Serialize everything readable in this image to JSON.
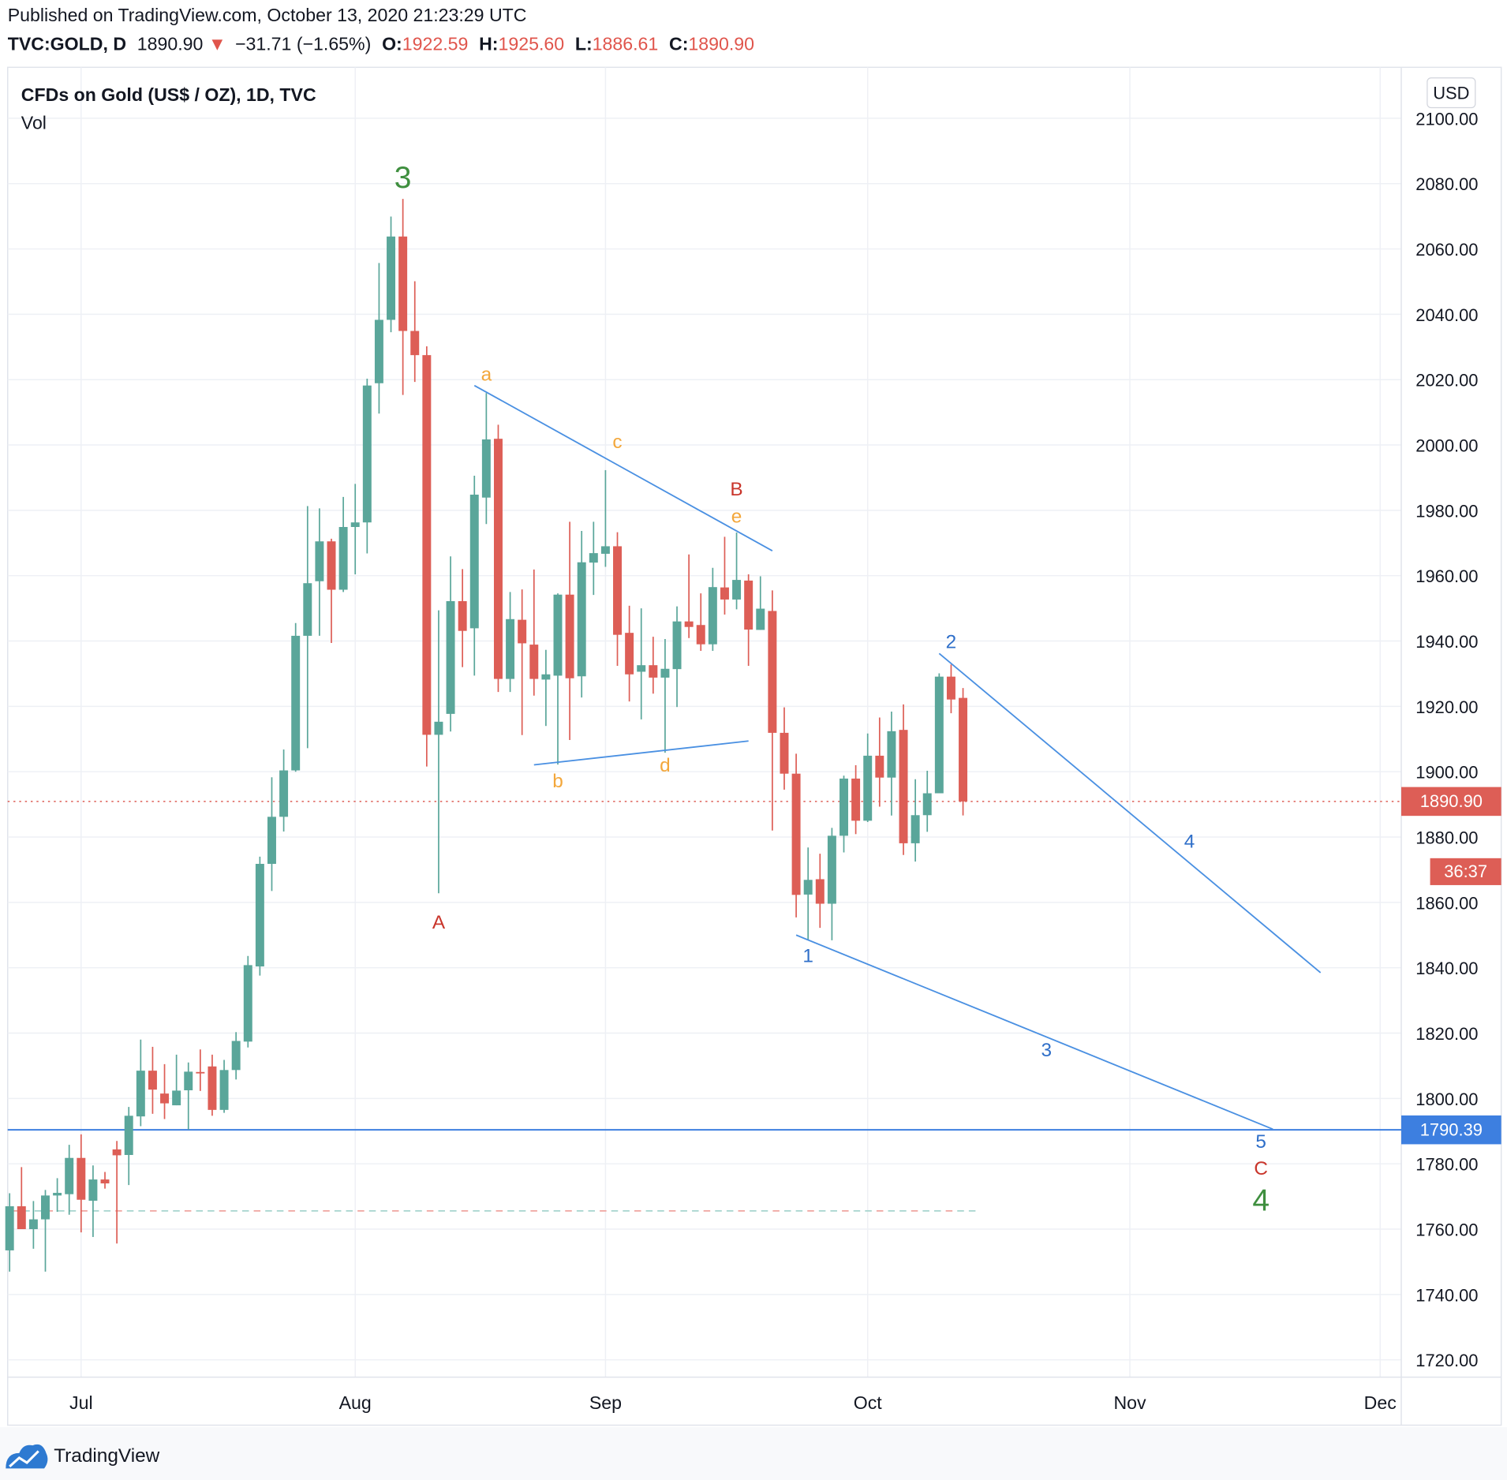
{
  "header": {
    "published": "Published on TradingView.com, October 13, 2020 21:23:29 UTC",
    "symbol": "TVC:GOLD, D",
    "last": "1890.90",
    "change_arrow": "▼",
    "change": "−31.71 (−1.65%)",
    "o_label": "O:",
    "o": "1922.59",
    "h_label": "H:",
    "h": "1925.60",
    "l_label": "L:",
    "l": "1886.61",
    "c_label": "C:",
    "c": "1890.90"
  },
  "pane": {
    "title": "CFDs on Gold (US$ / OZ), 1D, TVC",
    "indicator": "Vol",
    "currency": "USD"
  },
  "badges": {
    "last_price": "1890.90",
    "countdown": "36:37",
    "hline_price": "1790.39"
  },
  "footer": {
    "brand": "TradingView"
  },
  "colors": {
    "up": "#5aa69a",
    "down": "#dd5e56",
    "line_blue": "#4a90e2",
    "hline_blue": "#3d7fe0",
    "wave_blue": "#2f6fc9",
    "wave_orange": "#f3a73b",
    "wave_red": "#c9352b",
    "wave_green": "#3f8f3f"
  },
  "chart_data": {
    "type": "candlestick",
    "title": "CFDs on Gold (US$ / OZ), 1D, TVC",
    "ylim": [
      1710,
      2110
    ],
    "y_ticks": [
      "2100.00",
      "2080.00",
      "2060.00",
      "2040.00",
      "2020.00",
      "2000.00",
      "1980.00",
      "1960.00",
      "1940.00",
      "1920.00",
      "1900.00",
      "1880.00",
      "1860.00",
      "1840.00",
      "1820.00",
      "1800.00",
      "1780.00",
      "1760.00",
      "1740.00",
      "1720.00"
    ],
    "x_ticks": [
      {
        "label": "Jul",
        "date": "2020-07-01"
      },
      {
        "label": "Aug",
        "date": "2020-08-03"
      },
      {
        "label": "Sep",
        "date": "2020-09-01"
      },
      {
        "label": "Oct",
        "date": "2020-10-01"
      },
      {
        "label": "Nov",
        "date": "2020-11-02"
      },
      {
        "label": "Dec",
        "date": "2020-12-01"
      }
    ],
    "grid": true,
    "columns": [
      "date",
      "open",
      "high",
      "low",
      "close"
    ],
    "candles": [
      [
        "2020-06-23",
        1753.5,
        1771,
        1747,
        1767
      ],
      [
        "2020-06-24",
        1767,
        1779,
        1760,
        1760
      ],
      [
        "2020-06-25",
        1760,
        1768.6,
        1754,
        1763
      ],
      [
        "2020-06-26",
        1763,
        1772,
        1747,
        1770.3
      ],
      [
        "2020-06-29",
        1770.3,
        1775.6,
        1765.3,
        1771.1
      ],
      [
        "2020-06-30",
        1770.7,
        1785.8,
        1764.4,
        1781.8
      ],
      [
        "2020-07-01",
        1781.8,
        1789,
        1759,
        1769
      ],
      [
        "2020-07-02",
        1768.7,
        1779.5,
        1757.6,
        1775.2
      ],
      [
        "2020-07-03",
        1775.2,
        1777.5,
        1772.4,
        1774
      ],
      [
        "2020-07-06",
        1784.4,
        1787,
        1755.6,
        1782.6
      ],
      [
        "2020-07-07",
        1782.7,
        1797.4,
        1773.5,
        1794.7
      ],
      [
        "2020-07-08",
        1794.5,
        1818,
        1791.5,
        1808.5
      ],
      [
        "2020-07-09",
        1808.5,
        1815.8,
        1795.3,
        1802.7
      ],
      [
        "2020-07-10",
        1801.5,
        1810.5,
        1793.7,
        1798.5
      ],
      [
        "2020-07-13",
        1797.9,
        1813.4,
        1797.9,
        1802.4
      ],
      [
        "2020-07-14",
        1802.5,
        1811,
        1790.5,
        1808.2
      ],
      [
        "2020-07-15",
        1808.1,
        1815,
        1802.3,
        1807.7
      ],
      [
        "2020-07-16",
        1809.8,
        1813.4,
        1794.7,
        1796.5
      ],
      [
        "2020-07-17",
        1796.5,
        1811.8,
        1795.6,
        1808.7
      ],
      [
        "2020-07-20",
        1808.7,
        1820.3,
        1805.8,
        1817.6
      ],
      [
        "2020-07-21",
        1817.4,
        1843.6,
        1815.6,
        1840.8
      ],
      [
        "2020-07-22",
        1840.4,
        1874,
        1837.6,
        1871.8
      ],
      [
        "2020-07-23",
        1871.8,
        1898.3,
        1863.5,
        1886.2
      ],
      [
        "2020-07-24",
        1886.2,
        1906.8,
        1881.7,
        1900.4
      ],
      [
        "2020-07-27",
        1900.4,
        1945.5,
        1900,
        1941.6
      ],
      [
        "2020-07-28",
        1941.6,
        1981.3,
        1907.2,
        1957.7
      ],
      [
        "2020-07-29",
        1958.3,
        1980.6,
        1941.6,
        1970.5
      ],
      [
        "2020-07-30",
        1970.5,
        1971.3,
        1939.4,
        1955.7
      ],
      [
        "2020-07-31",
        1955.7,
        1984.1,
        1955,
        1974.9
      ],
      [
        "2020-08-03",
        1974.9,
        1988.1,
        1960.4,
        1976.3
      ],
      [
        "2020-08-04",
        1976.3,
        2020.3,
        1966.8,
        2018.2
      ],
      [
        "2020-08-05",
        2018.9,
        2055.7,
        2009.6,
        2038.3
      ],
      [
        "2020-08-06",
        2038.3,
        2069.9,
        2034.5,
        2063.8
      ],
      [
        "2020-08-07",
        2063.8,
        2075.3,
        2015.3,
        2034.9
      ],
      [
        "2020-08-10",
        2034.9,
        2050.1,
        2019.3,
        2027.5
      ],
      [
        "2020-08-11",
        2027.5,
        2030.2,
        1901.6,
        1911.3
      ],
      [
        "2020-08-12",
        1911.3,
        1949.4,
        1862.8,
        1915.3
      ],
      [
        "2020-08-13",
        1917.7,
        1965.9,
        1912.3,
        1952.2
      ],
      [
        "2020-08-14",
        1952.2,
        1962,
        1932,
        1943.1
      ],
      [
        "2020-08-17",
        1943.9,
        1990.6,
        1929.4,
        1984.8
      ],
      [
        "2020-08-18",
        1983.9,
        2015.9,
        1975.8,
        2001.7
      ],
      [
        "2020-08-19",
        2001.9,
        2006.2,
        1924.4,
        1928.4
      ],
      [
        "2020-08-20",
        1928.4,
        1955,
        1924.4,
        1946.7
      ],
      [
        "2020-08-21",
        1946.5,
        1955.8,
        1911.2,
        1939.3
      ],
      [
        "2020-08-24",
        1938.9,
        1961.9,
        1923.3,
        1928.4
      ],
      [
        "2020-08-25",
        1928.2,
        1937.3,
        1914,
        1929.8
      ],
      [
        "2020-08-26",
        1929.4,
        1954.6,
        1902.2,
        1954.2
      ],
      [
        "2020-08-27",
        1954.2,
        1976.5,
        1909.7,
        1928.6
      ],
      [
        "2020-08-28",
        1929.2,
        1973.7,
        1922.7,
        1964.1
      ],
      [
        "2020-08-31",
        1964,
        1976.5,
        1954.1,
        1966.9
      ],
      [
        "2020-09-01",
        1966.7,
        1992.3,
        1962.7,
        1969
      ],
      [
        "2020-09-02",
        1969,
        1973.3,
        1932.4,
        1941.9
      ],
      [
        "2020-09-03",
        1942.5,
        1950.8,
        1921.5,
        1929.8
      ],
      [
        "2020-09-04",
        1930.6,
        1950,
        1916,
        1932.6
      ],
      [
        "2020-09-07",
        1932.6,
        1941.3,
        1923.9,
        1928.8
      ],
      [
        "2020-09-08",
        1928.8,
        1940.6,
        1905.8,
        1931.5
      ],
      [
        "2020-09-09",
        1931.4,
        1950.6,
        1919.8,
        1946
      ],
      [
        "2020-09-10",
        1946,
        1966.5,
        1940.9,
        1944.3
      ],
      [
        "2020-09-11",
        1944.9,
        1954.6,
        1937,
        1939
      ],
      [
        "2020-09-14",
        1939,
        1962.4,
        1937,
        1956.5
      ],
      [
        "2020-09-15",
        1956.4,
        1971.9,
        1948.1,
        1952.7
      ],
      [
        "2020-09-16",
        1952.7,
        1973.2,
        1949.7,
        1958.7
      ],
      [
        "2020-09-17",
        1958.5,
        1960.4,
        1932.4,
        1943.5
      ],
      [
        "2020-09-18",
        1943.4,
        1959.8,
        1943.4,
        1949.9
      ],
      [
        "2020-09-21",
        1949.2,
        1955.5,
        1882,
        1911.9
      ],
      [
        "2020-09-22",
        1911.9,
        1919.7,
        1894.5,
        1899.4
      ],
      [
        "2020-09-23",
        1899.4,
        1905.5,
        1855.4,
        1862.3
      ],
      [
        "2020-09-24",
        1862.4,
        1876.8,
        1848.4,
        1866.9
      ],
      [
        "2020-09-25",
        1867.1,
        1874.9,
        1852.2,
        1859.6
      ],
      [
        "2020-09-28",
        1859.6,
        1882.8,
        1848.4,
        1880.4
      ],
      [
        "2020-09-29",
        1880.4,
        1898.8,
        1875.3,
        1897.9
      ],
      [
        "2020-09-30",
        1897.9,
        1902,
        1880.9,
        1885
      ],
      [
        "2020-10-01",
        1885,
        1911.7,
        1884.6,
        1904.9
      ],
      [
        "2020-10-02",
        1904.9,
        1916.6,
        1889.3,
        1898.2
      ],
      [
        "2020-10-05",
        1898.2,
        1918.4,
        1886.6,
        1912.4
      ],
      [
        "2020-10-06",
        1912.8,
        1920.6,
        1874.5,
        1878.1
      ],
      [
        "2020-10-07",
        1878.1,
        1897.7,
        1872.5,
        1886.7
      ],
      [
        "2020-10-08",
        1886.7,
        1900.3,
        1881.6,
        1893.4
      ],
      [
        "2020-10-09",
        1893.4,
        1930.1,
        1893.4,
        1929.1
      ],
      [
        "2020-10-12",
        1929.1,
        1932.8,
        1917.9,
        1922.1
      ],
      [
        "2020-10-13",
        1922.59,
        1925.6,
        1886.61,
        1890.9
      ]
    ],
    "last_price_line": 1890.9,
    "horizontal_line": 1790.39,
    "trend_lines": [
      {
        "from": {
          "date": "2020-08-17",
          "price": 2018.2
        },
        "to": {
          "date": "2020-09-21",
          "price": 1967.6
        },
        "color": "#4a90e2"
      },
      {
        "from": {
          "date": "2020-08-24",
          "price": 1902.1
        },
        "to": {
          "date": "2020-09-17",
          "price": 1909.4
        },
        "color": "#4a90e2"
      },
      {
        "from": {
          "date": "2020-10-09",
          "price": 1936.2
        },
        "to": {
          "date": "2020-11-24",
          "price": 1838.5
        },
        "color": "#4a90e2"
      },
      {
        "from": {
          "date": "2020-09-23",
          "price": 1850.0
        },
        "to": {
          "date": "2020-11-18",
          "price": 1790.6
        },
        "color": "#4a90e2"
      }
    ],
    "wave_labels": [
      {
        "text": "3",
        "date": "2020-08-07",
        "price": 2081.8,
        "color": "#3f8f3f",
        "big": true
      },
      {
        "text": "A",
        "date": "2020-08-12",
        "price": 1853.8,
        "color": "#c9352b"
      },
      {
        "text": "a",
        "date": "2020-08-18",
        "price": 2021.5,
        "color": "#f3a73b"
      },
      {
        "text": "b",
        "date": "2020-08-26",
        "price": 1897.0,
        "color": "#f3a73b"
      },
      {
        "text": "c",
        "date": "2020-09-02",
        "price": 2000.9,
        "color": "#f3a73b"
      },
      {
        "text": "d",
        "date": "2020-09-08",
        "price": 1901.8,
        "color": "#f3a73b"
      },
      {
        "text": "e",
        "date": "2020-09-16",
        "price": 1978.8,
        "color": "#f3a73b"
      },
      {
        "text": "B",
        "date": "2020-09-16",
        "price": 1985.6,
        "color": "#c9352b"
      },
      {
        "text": "1",
        "date": "2020-09-24",
        "price": 1843.5,
        "color": "#2f6fc9"
      },
      {
        "text": "2",
        "date": "2020-10-12",
        "price": 1939.7,
        "color": "#2f6fc9"
      },
      {
        "text": "3",
        "date": "2020-10-22",
        "price": 1814.7,
        "color": "#2f6fc9"
      },
      {
        "text": "4",
        "date": "2020-11-09",
        "price": 1878.5,
        "color": "#2f6fc9"
      },
      {
        "text": "5",
        "date": "2020-11-17",
        "price": 1786.5,
        "color": "#2f6fc9"
      },
      {
        "text": "C",
        "date": "2020-11-17",
        "price": 1778.2,
        "color": "#c9352b"
      },
      {
        "text": "4",
        "date": "2020-11-17",
        "price": 1769.0,
        "color": "#3f8f3f",
        "big": true
      }
    ]
  }
}
